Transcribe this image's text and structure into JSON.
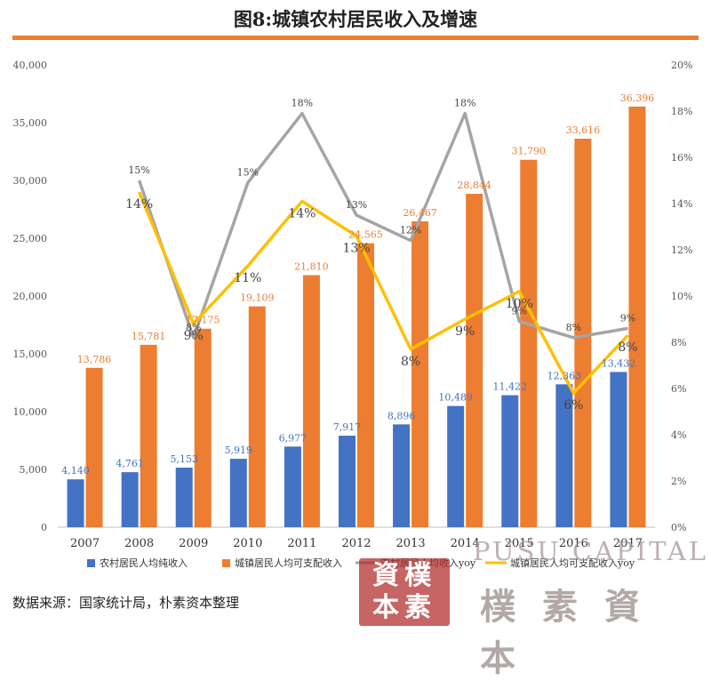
{
  "page": {
    "title": "图8:城镇农村居民收入及增速",
    "source": "数据来源：国家统计局，朴素资本整理",
    "watermark": {
      "seal": "資樸本素",
      "latin": "PUSU CAPITAL",
      "cjk": "樸素資本"
    }
  },
  "colors": {
    "accent": "#ED7D31",
    "rural_bar": "#4472C4",
    "urban_bar": "#ED7D31",
    "rural_yoy": "#A5A5A5",
    "urban_yoy": "#FFC000"
  },
  "chart_data": {
    "type": "bar",
    "categories": [
      "2007",
      "2008",
      "2009",
      "2010",
      "2011",
      "2012",
      "2013",
      "2014",
      "2015",
      "2016",
      "2017"
    ],
    "y_left": {
      "min": 0,
      "max": 40000,
      "ticks": [
        "0",
        "5,000",
        "10,000",
        "15,000",
        "20,000",
        "25,000",
        "30,000",
        "35,000",
        "40,000"
      ]
    },
    "y_right": {
      "min": 0,
      "max": 20,
      "ticks": [
        "0%",
        "2%",
        "4%",
        "6%",
        "8%",
        "10%",
        "12%",
        "14%",
        "16%",
        "18%",
        "20%"
      ]
    },
    "bar_series": [
      {
        "name": "农村居民人均纯收入",
        "values": [
          4140,
          4761,
          5153,
          5919,
          6977,
          7917,
          8896,
          10489,
          11422,
          12363,
          13432
        ],
        "labels": [
          "4,140",
          "4,761",
          "5,153",
          "5,919",
          "6,977",
          "7,917",
          "8,896",
          "10,489",
          "11,422",
          "12,363",
          "13,432"
        ]
      },
      {
        "name": "城镇居民人均可支配收入",
        "values": [
          13786,
          15781,
          17175,
          19109,
          21810,
          24565,
          26467,
          28844,
          31790,
          33616,
          36396
        ],
        "labels": [
          "13,786",
          "15,781",
          "17,175",
          "19,109",
          "21,810",
          "24,565",
          "26,467",
          "28,844",
          "31,790",
          "33,616",
          "36,396"
        ]
      }
    ],
    "line_series": [
      {
        "name": "农村居民人均收入yoy",
        "axis": "right",
        "values": [
          null,
          15,
          8.2,
          14.9,
          17.9,
          13.5,
          12.4,
          17.9,
          8.9,
          8.2,
          8.6
        ],
        "labels": [
          "",
          "15%",
          "8%",
          "15%",
          "18%",
          "13%",
          "12%",
          "18%",
          "9%",
          "8%",
          "9%"
        ]
      },
      {
        "name": "城镇居民人均可支配收入yoy",
        "axis": "right",
        "values": [
          null,
          14.5,
          8.8,
          11.3,
          14.1,
          12.6,
          7.7,
          9,
          10.2,
          5.8,
          8.3
        ],
        "labels": [
          "",
          "14%",
          "9%",
          "11%",
          "14%",
          "13%",
          "8%",
          "9%",
          "10%",
          "6%",
          "8%"
        ]
      }
    ],
    "legend": "bottom",
    "grid": false
  }
}
